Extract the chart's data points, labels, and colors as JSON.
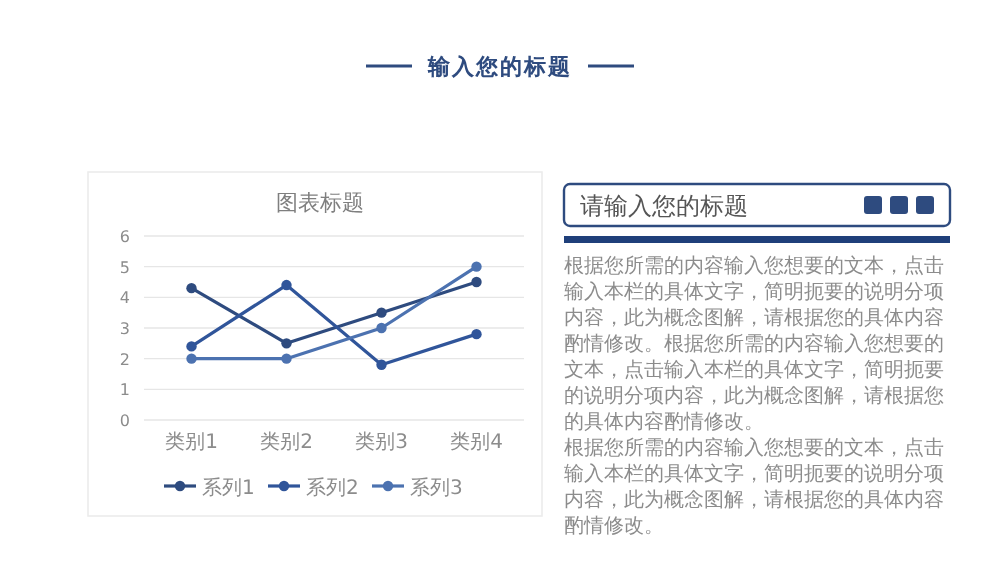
{
  "chart_data": [
    {
      "type": "other",
      "title": "输入您的标题"
    },
    {
      "type": "line",
      "title": "图表标题",
      "categories": [
        "类别1",
        "类别2",
        "类别3",
        "类别4"
      ],
      "series": [
        {
          "name": "系列1",
          "color": "#2e4b7f",
          "values": [
            4.3,
            2.5,
            3.5,
            4.5
          ]
        },
        {
          "name": "系列2",
          "color": "#30559a",
          "values": [
            2.4,
            4.4,
            1.8,
            2.8
          ]
        },
        {
          "name": "系列3",
          "color": "#4c72b0",
          "values": [
            2,
            2,
            3,
            5
          ]
        }
      ],
      "ylim": [
        0,
        6
      ],
      "yticks": [
        0,
        1,
        2,
        3,
        4,
        5,
        6
      ],
      "grid": "y",
      "legend": "bottom",
      "marker": "circle"
    },
    {
      "type": "other",
      "title": "请输入您的标题",
      "annotations": [
        "根据您所需的内容输入您想要的文本，点击输入本栏的具体文字，简明扼要的说明分项内容，此为概念图解，请根据您的具体内容酌情修改。根据您所需的内容输入您想要的文本，点击输入本栏的具体文字，简明扼要的说明分项内容，此为概念图解，请根据您的具体内容酌情修改。",
        "根据您所需的内容输入您想要的文本，点击输入本栏的具体文字，简明扼要的说明分项内容，此为概念图解，请根据您的具体内容酌情修改。"
      ]
    }
  ]
}
